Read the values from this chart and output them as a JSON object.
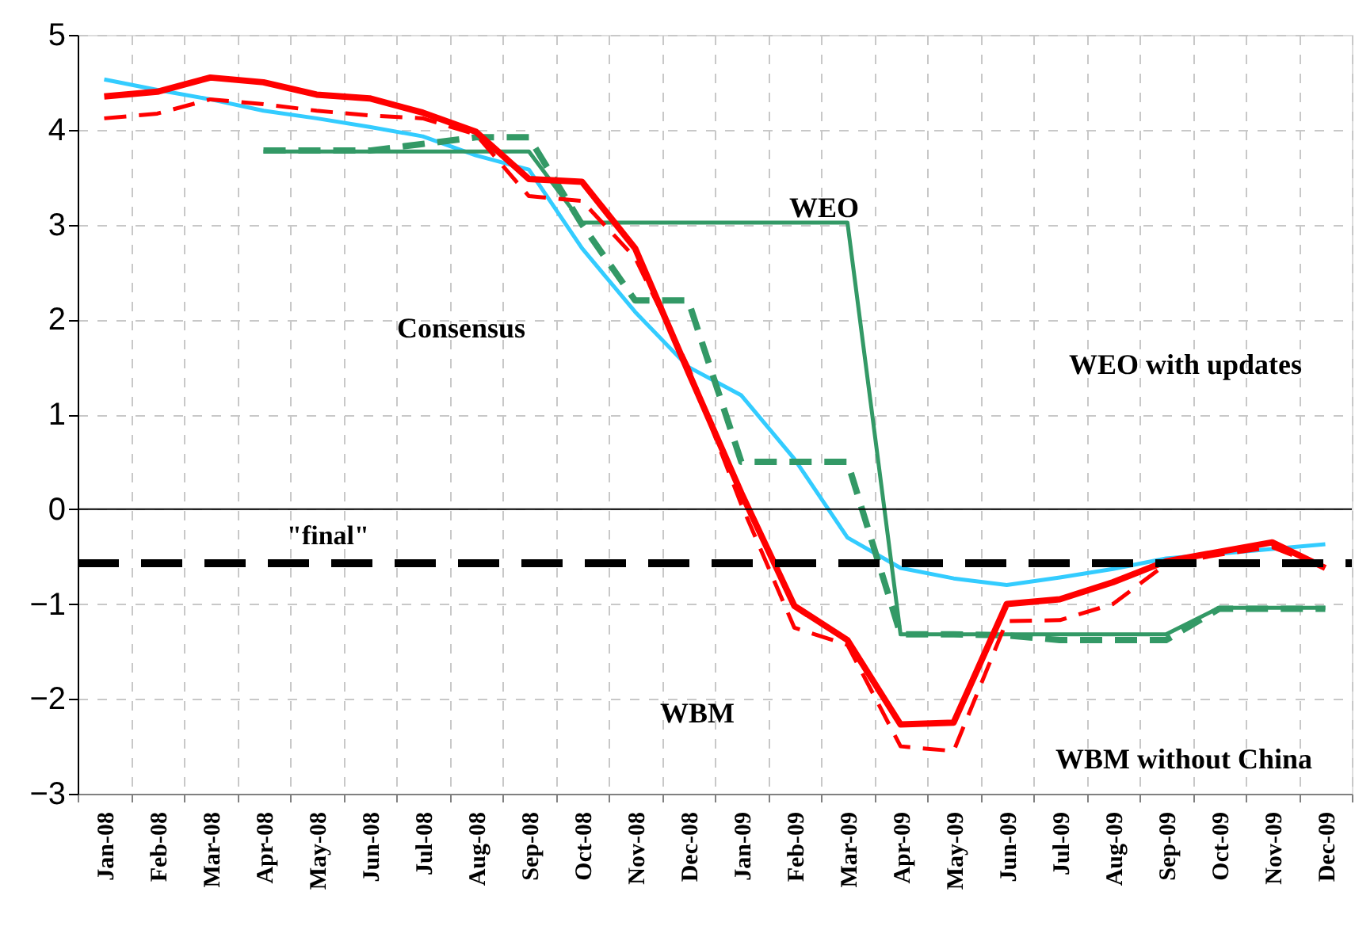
{
  "chart_data": {
    "type": "line",
    "categories": [
      "Jan-08",
      "Feb-08",
      "Mar-08",
      "Apr-08",
      "May-08",
      "Jun-08",
      "Jul-08",
      "Aug-08",
      "Sep-08",
      "Oct-08",
      "Nov-08",
      "Dec-08",
      "Jan-09",
      "Feb-09",
      "Mar-09",
      "Apr-09",
      "May-09",
      "Jun-09",
      "Jul-09",
      "Aug-09",
      "Sep-09",
      "Oct-09",
      "Nov-09",
      "Dec-09"
    ],
    "series": [
      {
        "color": "#33ccff",
        "line_style": "solid",
        "values": [
          4.53,
          4.42,
          4.32,
          4.2,
          4.12,
          4.03,
          3.93,
          3.73,
          3.58,
          2.75,
          2.08,
          1.5,
          1.2,
          0.53,
          -0.3,
          -0.62,
          -0.73,
          -0.8,
          -0.72,
          -0.63,
          -0.52,
          -0.47,
          -0.42,
          -0.37
        ]
      },
      {
        "color": "#339966",
        "line_style": "solid",
        "values": [
          null,
          null,
          null,
          3.77,
          3.77,
          3.77,
          3.77,
          3.77,
          3.77,
          3.02,
          3.02,
          3.02,
          3.02,
          3.02,
          3.02,
          -1.32,
          -1.32,
          -1.32,
          -1.32,
          -1.32,
          -1.32,
          -1.04,
          -1.04,
          -1.04
        ]
      },
      {
        "color": "#339966",
        "line_style": "dashed",
        "values": [
          null,
          null,
          null,
          3.78,
          3.78,
          3.78,
          3.85,
          3.92,
          3.92,
          3.0,
          2.2,
          2.2,
          0.5,
          0.5,
          0.5,
          -1.32,
          -1.32,
          -1.33,
          -1.38,
          -1.38,
          -1.38,
          -1.05,
          -1.05,
          -1.05
        ]
      },
      {
        "color": "#ff0000",
        "line_style": "dashed",
        "values": [
          4.12,
          4.17,
          4.32,
          4.27,
          4.2,
          4.15,
          4.12,
          3.95,
          3.3,
          3.25,
          2.65,
          1.5,
          0.05,
          -1.25,
          -1.43,
          -2.5,
          -2.55,
          -1.18,
          -1.17,
          -1.0,
          -0.58,
          -0.48,
          -0.4,
          -0.62
        ]
      },
      {
        "color": "#ff0000",
        "line_style": "solid",
        "values": [
          4.35,
          4.4,
          4.55,
          4.5,
          4.37,
          4.33,
          4.18,
          3.98,
          3.48,
          3.45,
          2.75,
          1.45,
          0.17,
          -1.02,
          -1.38,
          -2.27,
          -2.25,
          -1.0,
          -0.95,
          -0.77,
          -0.55,
          -0.45,
          -0.35,
          -0.62
        ]
      }
    ],
    "ylim": [
      -3,
      5
    ],
    "yticks": [
      -3,
      -2,
      -1,
      0,
      1,
      2,
      3,
      4,
      5
    ],
    "grid": true,
    "ref_lines": [
      {
        "axis": "y",
        "value": 0,
        "color": "#000000",
        "line_style": "solid"
      },
      {
        "axis": "y",
        "value": -0.57,
        "label": "\"final\"",
        "color": "#000000",
        "line_style": "dashed"
      }
    ],
    "annotations": [
      "WEO",
      "Consensus",
      "WEO with updates",
      "WBM",
      "WBM without China"
    ]
  }
}
